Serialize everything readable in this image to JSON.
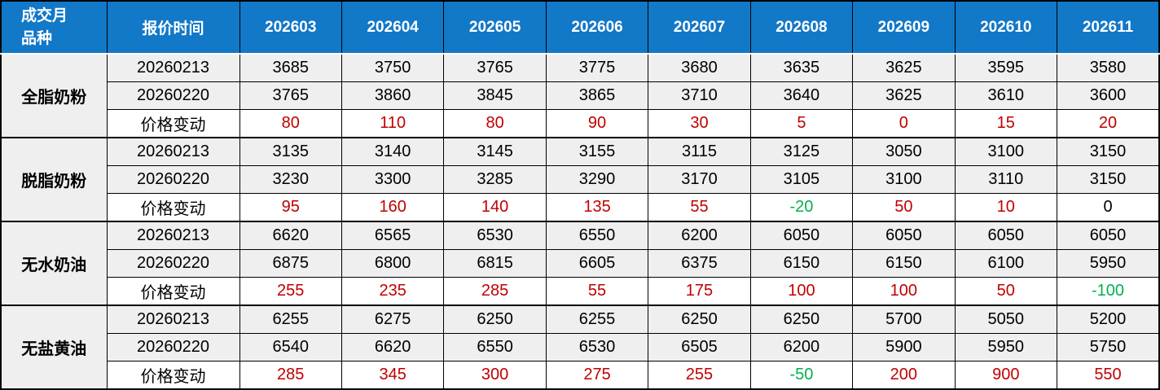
{
  "colors": {
    "header_bg": "#1278C8",
    "header_text": "#FFFFFF",
    "grid": "#000000",
    "row_gray": "#EFEFEF",
    "up_red": "#C00000",
    "down_green": "#00B050"
  },
  "table": {
    "corner": {
      "line1": "成交月",
      "line2": "品种"
    },
    "quote_time_header": "报价时间",
    "months": [
      "202603",
      "202604",
      "202605",
      "202606",
      "202607",
      "202608",
      "202609",
      "202610",
      "202611"
    ],
    "groups": [
      {
        "product": "全脂奶粉",
        "rows": [
          {
            "label": "20260213",
            "kind": "price",
            "values": [
              "3685",
              "3750",
              "3765",
              "3775",
              "3680",
              "3635",
              "3625",
              "3595",
              "3580"
            ]
          },
          {
            "label": "20260220",
            "kind": "price",
            "values": [
              "3765",
              "3860",
              "3845",
              "3865",
              "3710",
              "3640",
              "3625",
              "3610",
              "3600"
            ]
          },
          {
            "label": "价格变动",
            "kind": "change",
            "values": [
              "80",
              "110",
              "80",
              "90",
              "30",
              "5",
              "0",
              "15",
              "20"
            ],
            "value_colors": [
              "up",
              "up",
              "up",
              "up",
              "up",
              "up",
              "up",
              "up",
              "up"
            ]
          }
        ]
      },
      {
        "product": "脱脂奶粉",
        "rows": [
          {
            "label": "20260213",
            "kind": "price",
            "values": [
              "3135",
              "3140",
              "3145",
              "3155",
              "3115",
              "3125",
              "3050",
              "3100",
              "3150"
            ]
          },
          {
            "label": "20260220",
            "kind": "price",
            "values": [
              "3230",
              "3300",
              "3285",
              "3290",
              "3170",
              "3105",
              "3100",
              "3110",
              "3150"
            ]
          },
          {
            "label": "价格变动",
            "kind": "change",
            "values": [
              "95",
              "160",
              "140",
              "135",
              "55",
              "-20",
              "50",
              "10",
              "0"
            ],
            "value_colors": [
              "up",
              "up",
              "up",
              "up",
              "up",
              "down",
              "up",
              "up",
              "zero"
            ]
          }
        ]
      },
      {
        "product": "无水奶油",
        "rows": [
          {
            "label": "20260213",
            "kind": "price",
            "values": [
              "6620",
              "6565",
              "6530",
              "6550",
              "6200",
              "6050",
              "6050",
              "6050",
              "6050"
            ]
          },
          {
            "label": "20260220",
            "kind": "price",
            "values": [
              "6875",
              "6800",
              "6815",
              "6605",
              "6375",
              "6150",
              "6150",
              "6100",
              "5950"
            ]
          },
          {
            "label": "价格变动",
            "kind": "change",
            "values": [
              "255",
              "235",
              "285",
              "55",
              "175",
              "100",
              "100",
              "50",
              "-100"
            ],
            "value_colors": [
              "up",
              "up",
              "up",
              "up",
              "up",
              "up",
              "up",
              "up",
              "down"
            ]
          }
        ]
      },
      {
        "product": "无盐黄油",
        "rows": [
          {
            "label": "20260213",
            "kind": "price",
            "values": [
              "6255",
              "6275",
              "6250",
              "6255",
              "6250",
              "6250",
              "5700",
              "5050",
              "5200"
            ]
          },
          {
            "label": "20260220",
            "kind": "price",
            "values": [
              "6540",
              "6620",
              "6550",
              "6530",
              "6505",
              "6200",
              "5900",
              "5950",
              "5750"
            ]
          },
          {
            "label": "价格变动",
            "kind": "change",
            "values": [
              "285",
              "345",
              "300",
              "275",
              "255",
              "-50",
              "200",
              "900",
              "550"
            ],
            "value_colors": [
              "up",
              "up",
              "up",
              "up",
              "up",
              "down",
              "up",
              "up",
              "up"
            ]
          }
        ]
      }
    ]
  },
  "chart_data": {
    "type": "table",
    "columns": [
      "成交月品种",
      "报价时间",
      "202603",
      "202604",
      "202605",
      "202606",
      "202607",
      "202608",
      "202609",
      "202610",
      "202611"
    ],
    "rows": [
      [
        "全脂奶粉",
        "20260213",
        3685,
        3750,
        3765,
        3775,
        3680,
        3635,
        3625,
        3595,
        3580
      ],
      [
        "全脂奶粉",
        "20260220",
        3765,
        3860,
        3845,
        3865,
        3710,
        3640,
        3625,
        3610,
        3600
      ],
      [
        "全脂奶粉",
        "价格变动",
        80,
        110,
        80,
        90,
        30,
        5,
        0,
        15,
        20
      ],
      [
        "脱脂奶粉",
        "20260213",
        3135,
        3140,
        3145,
        3155,
        3115,
        3125,
        3050,
        3100,
        3150
      ],
      [
        "脱脂奶粉",
        "20260220",
        3230,
        3300,
        3285,
        3290,
        3170,
        3105,
        3100,
        3110,
        3150
      ],
      [
        "脱脂奶粉",
        "价格变动",
        95,
        160,
        140,
        135,
        55,
        -20,
        50,
        10,
        0
      ],
      [
        "无水奶油",
        "20260213",
        6620,
        6565,
        6530,
        6550,
        6200,
        6050,
        6050,
        6050,
        6050
      ],
      [
        "无水奶油",
        "20260220",
        6875,
        6800,
        6815,
        6605,
        6375,
        6150,
        6150,
        6100,
        5950
      ],
      [
        "无水奶油",
        "价格变动",
        255,
        235,
        285,
        55,
        175,
        100,
        100,
        50,
        -100
      ],
      [
        "无盐黄油",
        "20260213",
        6255,
        6275,
        6250,
        6255,
        6250,
        6250,
        5700,
        5050,
        5200
      ],
      [
        "无盐黄油",
        "20260220",
        6540,
        6620,
        6550,
        6530,
        6505,
        6200,
        5900,
        5950,
        5750
      ],
      [
        "无盐黄油",
        "价格变动",
        285,
        345,
        300,
        275,
        255,
        -50,
        200,
        900,
        550
      ]
    ],
    "notes": "价格变动 row colored: positive=red(#C00000), negative=green(#00B050); 0 shown red for 全脂奶粉/202609 and black for 脱脂奶粉/202611"
  }
}
